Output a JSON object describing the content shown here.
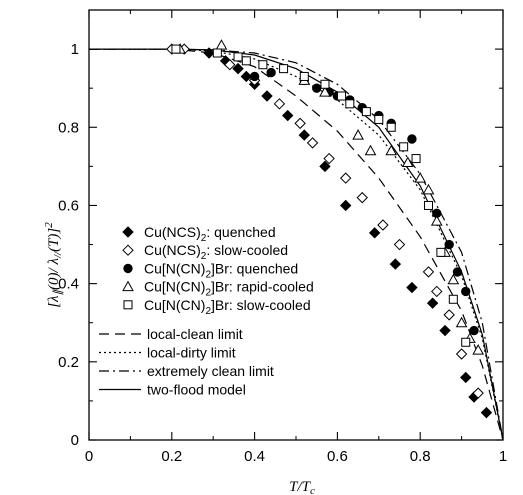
{
  "chart_data": {
    "type": "scatter",
    "xlabel": "T/T_c",
    "ylabel": "[λ∥(0)/ λ∥(T)]²",
    "xlim": [
      0,
      1
    ],
    "ylim": [
      0,
      1.1
    ],
    "x_ticks": [
      0,
      0.2,
      0.4,
      0.6,
      0.8,
      1
    ],
    "y_ticks": [
      0,
      0.2,
      0.4,
      0.6,
      0.8,
      1
    ],
    "x_tick_labels": [
      "0",
      "0.2",
      "0.4",
      "0.6",
      "0.8",
      "1"
    ],
    "y_tick_labels": [
      "0",
      "0.2",
      "0.4",
      "0.6",
      "0.8",
      "1"
    ],
    "legend_position": "lower-left",
    "series": [
      {
        "name": "Cu(NCS)2: quenched",
        "label_main": "Cu(NCS)",
        "label_sub": "2",
        "label_tail": ": quenched",
        "marker": "diamond-filled",
        "points": [
          [
            0.29,
            0.99
          ],
          [
            0.33,
            0.97
          ],
          [
            0.36,
            0.95
          ],
          [
            0.38,
            0.93
          ],
          [
            0.4,
            0.91
          ],
          [
            0.43,
            0.88
          ],
          [
            0.48,
            0.83
          ],
          [
            0.52,
            0.78
          ],
          [
            0.57,
            0.7
          ],
          [
            0.62,
            0.6
          ],
          [
            0.69,
            0.53
          ],
          [
            0.74,
            0.45
          ],
          [
            0.78,
            0.39
          ],
          [
            0.83,
            0.35
          ],
          [
            0.86,
            0.28
          ],
          [
            0.91,
            0.16
          ],
          [
            0.93,
            0.11
          ],
          [
            0.96,
            0.07
          ]
        ]
      },
      {
        "name": "Cu(NCS)2: slow-cooled",
        "label_main": "Cu(NCS)",
        "label_sub": "2",
        "label_tail": ": slow-cooled",
        "marker": "diamond-open",
        "points": [
          [
            0.2,
            1.0
          ],
          [
            0.23,
            1.0
          ],
          [
            0.34,
            0.96
          ],
          [
            0.4,
            0.92
          ],
          [
            0.46,
            0.86
          ],
          [
            0.51,
            0.81
          ],
          [
            0.54,
            0.76
          ],
          [
            0.58,
            0.72
          ],
          [
            0.62,
            0.67
          ],
          [
            0.66,
            0.62
          ],
          [
            0.71,
            0.55
          ],
          [
            0.75,
            0.5
          ],
          [
            0.82,
            0.43
          ],
          [
            0.84,
            0.38
          ],
          [
            0.87,
            0.32
          ],
          [
            0.9,
            0.22
          ],
          [
            0.94,
            0.12
          ]
        ]
      },
      {
        "name": "Cu[N(CN)2]Br: quenched",
        "label_main": "Cu[N(CN)",
        "label_sub": "2",
        "label_tail": "]Br: quenched",
        "marker": "circle-filled",
        "points": [
          [
            0.4,
            0.93
          ],
          [
            0.44,
            0.94
          ],
          [
            0.52,
            0.92
          ],
          [
            0.55,
            0.9
          ],
          [
            0.58,
            0.89
          ],
          [
            0.6,
            0.88
          ],
          [
            0.63,
            0.87
          ],
          [
            0.66,
            0.85
          ],
          [
            0.7,
            0.83
          ],
          [
            0.73,
            0.81
          ],
          [
            0.78,
            0.77
          ],
          [
            0.84,
            0.58
          ],
          [
            0.87,
            0.5
          ],
          [
            0.89,
            0.43
          ],
          [
            0.91,
            0.38
          ],
          [
            0.93,
            0.28
          ]
        ]
      },
      {
        "name": "Cu[N(CN)2]Br: rapid-cooled",
        "label_main": "Cu[N(CN)",
        "label_sub": "2",
        "label_tail": "]Br: rapid-cooled",
        "marker": "triangle-open",
        "points": [
          [
            0.22,
            1.0
          ],
          [
            0.32,
            1.01
          ],
          [
            0.52,
            0.92
          ],
          [
            0.57,
            0.89
          ],
          [
            0.65,
            0.78
          ],
          [
            0.68,
            0.74
          ],
          [
            0.73,
            0.74
          ],
          [
            0.77,
            0.71
          ],
          [
            0.8,
            0.67
          ],
          [
            0.82,
            0.64
          ],
          [
            0.84,
            0.56
          ],
          [
            0.86,
            0.48
          ],
          [
            0.88,
            0.41
          ],
          [
            0.9,
            0.3
          ],
          [
            0.92,
            0.26
          ],
          [
            0.94,
            0.23
          ]
        ]
      },
      {
        "name": "Cu[N(CN)2]Br: slow-cooled",
        "label_main": "Cu[N(CN)",
        "label_sub": "2",
        "label_tail": "]Br: slow-cooled",
        "marker": "square-open",
        "points": [
          [
            0.21,
            1.0
          ],
          [
            0.31,
            0.99
          ],
          [
            0.36,
            0.98
          ],
          [
            0.38,
            0.97
          ],
          [
            0.42,
            0.96
          ],
          [
            0.47,
            0.95
          ],
          [
            0.52,
            0.93
          ],
          [
            0.57,
            0.91
          ],
          [
            0.61,
            0.88
          ],
          [
            0.63,
            0.86
          ],
          [
            0.67,
            0.84
          ],
          [
            0.7,
            0.82
          ],
          [
            0.73,
            0.8
          ],
          [
            0.76,
            0.75
          ],
          [
            0.79,
            0.72
          ],
          [
            0.82,
            0.6
          ],
          [
            0.85,
            0.48
          ],
          [
            0.88,
            0.36
          ],
          [
            0.91,
            0.25
          ]
        ]
      }
    ],
    "lines": [
      {
        "name": "local-clean limit",
        "style": "dashed",
        "points": [
          [
            0,
            1.0
          ],
          [
            0.2,
            1.0
          ],
          [
            0.3,
            0.99
          ],
          [
            0.4,
            0.955
          ],
          [
            0.5,
            0.88
          ],
          [
            0.6,
            0.79
          ],
          [
            0.7,
            0.67
          ],
          [
            0.8,
            0.52
          ],
          [
            0.9,
            0.33
          ],
          [
            0.95,
            0.19
          ],
          [
            1.0,
            0.0
          ]
        ]
      },
      {
        "name": "local-dirty limit",
        "style": "dotted",
        "points": [
          [
            0,
            1.0
          ],
          [
            0.2,
            1.0
          ],
          [
            0.3,
            0.995
          ],
          [
            0.4,
            0.975
          ],
          [
            0.5,
            0.93
          ],
          [
            0.6,
            0.87
          ],
          [
            0.7,
            0.78
          ],
          [
            0.8,
            0.64
          ],
          [
            0.9,
            0.42
          ],
          [
            0.95,
            0.26
          ],
          [
            1.0,
            0.0
          ]
        ]
      },
      {
        "name": "extremely clean limit",
        "style": "dashdot",
        "points": [
          [
            0,
            1.0
          ],
          [
            0.2,
            1.0
          ],
          [
            0.3,
            0.998
          ],
          [
            0.4,
            0.99
          ],
          [
            0.5,
            0.965
          ],
          [
            0.6,
            0.91
          ],
          [
            0.7,
            0.82
          ],
          [
            0.8,
            0.68
          ],
          [
            0.9,
            0.48
          ],
          [
            0.95,
            0.3
          ],
          [
            1.0,
            0.0
          ]
        ]
      },
      {
        "name": "two-flood model",
        "style": "solid",
        "points": [
          [
            0,
            1.0
          ],
          [
            0.2,
            1.0
          ],
          [
            0.3,
            0.998
          ],
          [
            0.4,
            0.985
          ],
          [
            0.5,
            0.95
          ],
          [
            0.6,
            0.89
          ],
          [
            0.7,
            0.8
          ],
          [
            0.8,
            0.65
          ],
          [
            0.9,
            0.43
          ],
          [
            0.95,
            0.27
          ],
          [
            1.0,
            0.0
          ]
        ]
      }
    ]
  }
}
